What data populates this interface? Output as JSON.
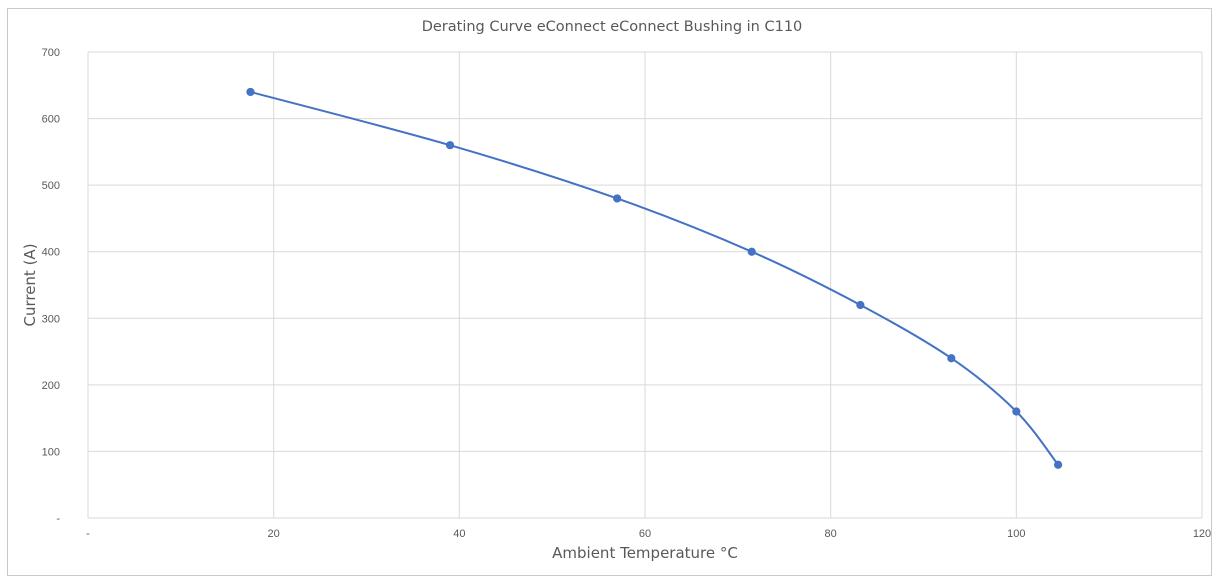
{
  "chart_data": {
    "type": "line",
    "title": "Derating Curve eConnect eConnect Bushing in C110",
    "xlabel": "Ambient Temperature °C",
    "ylabel": "Current (A)",
    "xlim": [
      0,
      120
    ],
    "ylim": [
      0,
      700
    ],
    "x_ticks": [
      0,
      20,
      40,
      60,
      80,
      100,
      120
    ],
    "x_tick_labels": [
      "-",
      "20",
      "40",
      "60",
      "80",
      "100",
      "120"
    ],
    "y_ticks": [
      0,
      100,
      200,
      300,
      400,
      500,
      600,
      700
    ],
    "y_tick_labels": [
      "-",
      "100",
      "200",
      "300",
      "400",
      "500",
      "600",
      "700"
    ],
    "grid": true,
    "series": [
      {
        "color": "#4472c4",
        "points": [
          {
            "x": 17.5,
            "y": 640
          },
          {
            "x": 39,
            "y": 560
          },
          {
            "x": 57,
            "y": 480
          },
          {
            "x": 71.5,
            "y": 400
          },
          {
            "x": 83.2,
            "y": 320
          },
          {
            "x": 93,
            "y": 240
          },
          {
            "x": 100,
            "y": 160
          },
          {
            "x": 104.5,
            "y": 80
          }
        ]
      }
    ]
  }
}
